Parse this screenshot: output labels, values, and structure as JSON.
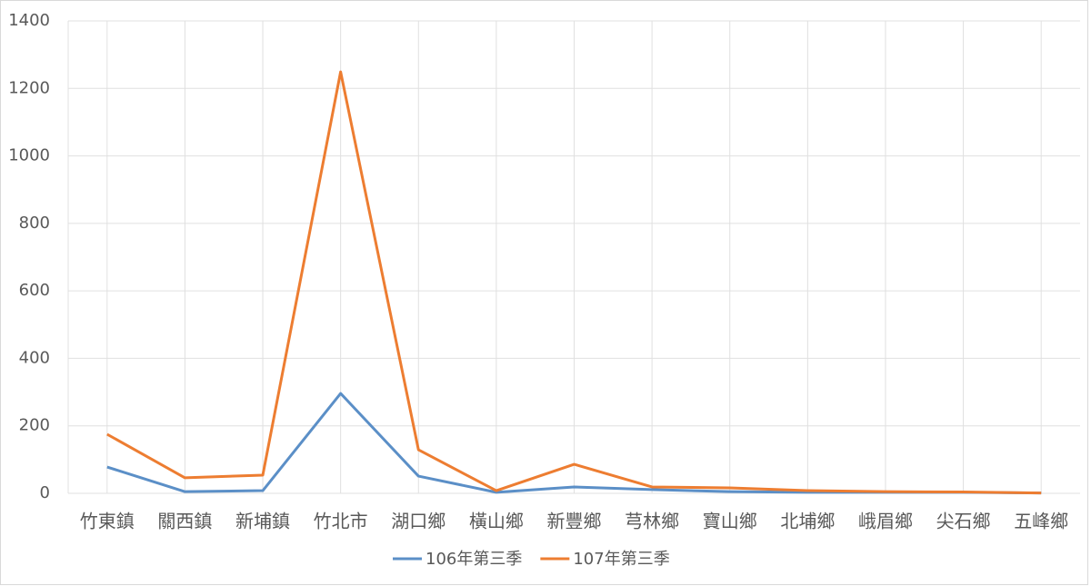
{
  "chart_data": {
    "type": "line",
    "categories": [
      "竹東鎮",
      "關西鎮",
      "新埔鎮",
      "竹北市",
      "湖口鄉",
      "橫山鄉",
      "新豐鄉",
      "芎林鄉",
      "寶山鄉",
      "北埔鄉",
      "峨眉鄉",
      "尖石鄉",
      "五峰鄉"
    ],
    "series": [
      {
        "name": "106年第三季",
        "color": "#5b8fc7",
        "values": [
          78,
          5,
          8,
          296,
          51,
          3,
          19,
          11,
          5,
          3,
          3,
          3,
          1
        ]
      },
      {
        "name": "107年第三季",
        "color": "#ed7d31",
        "values": [
          175,
          46,
          54,
          1249,
          129,
          8,
          86,
          19,
          16,
          8,
          5,
          4,
          1
        ]
      }
    ],
    "ylim": [
      0,
      1400
    ],
    "yticks": [
      0,
      200,
      400,
      600,
      800,
      1000,
      1200,
      1400
    ],
    "grid": true,
    "legend": "bottom"
  }
}
